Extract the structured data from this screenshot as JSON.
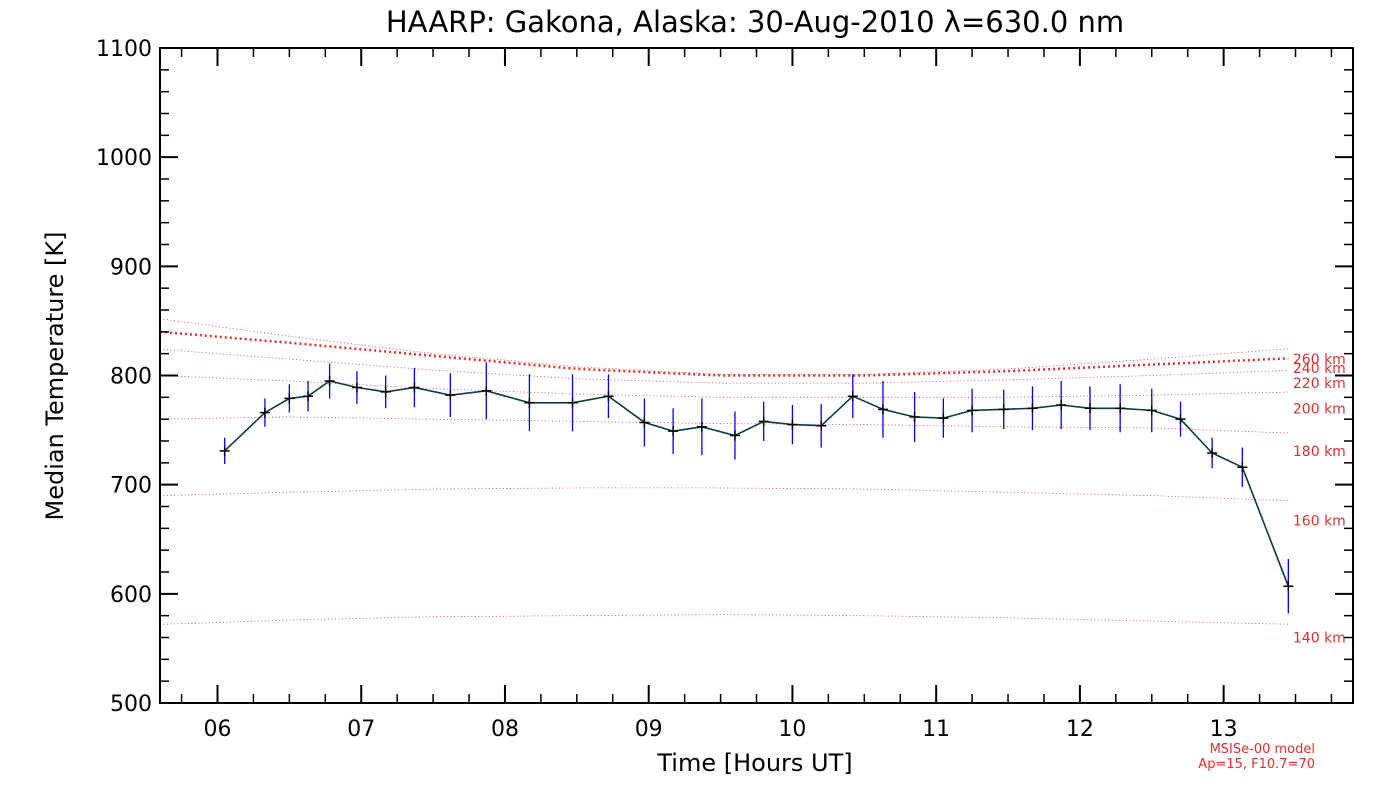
{
  "chart_data": {
    "type": "line",
    "title": "HAARP: Gakona,  Alaska: 30-Aug-2010 λ=630.0 nm",
    "xlabel": "Time [Hours UT]",
    "ylabel": "Median Temperature [K]",
    "xlim": [
      5.6,
      13.9
    ],
    "ylim": [
      500,
      1100
    ],
    "x_ticks": [
      6,
      7,
      8,
      9,
      10,
      11,
      12,
      13
    ],
    "x_tick_labels": [
      "06",
      "07",
      "08",
      "09",
      "10",
      "11",
      "12",
      "13"
    ],
    "y_ticks": [
      500,
      600,
      700,
      800,
      900,
      1000,
      1100
    ],
    "y_tick_labels": [
      "500",
      "600",
      "700",
      "800",
      "900",
      "1000",
      "1100"
    ],
    "grid": false,
    "colors": {
      "measurement_line": "#0a3a4a",
      "error_bar": "#0000ff",
      "model": "#e03030",
      "axes": "#000000"
    },
    "series": [
      {
        "x": [
          6.05,
          6.33,
          6.5,
          6.63,
          6.78,
          6.97,
          7.17,
          7.37,
          7.62,
          7.87,
          8.17,
          8.47,
          8.72,
          8.97,
          9.17,
          9.37,
          9.6,
          9.8,
          10.0,
          10.2,
          10.42,
          10.63,
          10.85,
          11.05,
          11.25,
          11.47,
          11.67,
          11.87,
          12.07,
          12.28,
          12.5,
          12.7,
          12.92,
          13.13,
          13.45
        ],
        "values": [
          731,
          766,
          779,
          781,
          795,
          789,
          785,
          789,
          782,
          786,
          775,
          775,
          781,
          757,
          749,
          753,
          745,
          758,
          755,
          754,
          781,
          769,
          762,
          761,
          768,
          769,
          770,
          773,
          770,
          770,
          768,
          760,
          729,
          716,
          607
        ],
        "errors": [
          12,
          13,
          13,
          14,
          16,
          15,
          15,
          18,
          20,
          26,
          26,
          26,
          20,
          22,
          21,
          26,
          22,
          18,
          18,
          20,
          20,
          26,
          23,
          18,
          20,
          18,
          20,
          22,
          20,
          22,
          20,
          16,
          14,
          18,
          25
        ]
      }
    ],
    "model": {
      "x": [
        5.6,
        6.5,
        7.5,
        8.5,
        9.5,
        10.5,
        11.5,
        12.5,
        13.5
      ],
      "curves": [
        {
          "label": "260 km",
          "values": [
            852,
            836,
            820,
            808,
            801,
            801,
            806,
            815,
            825
          ]
        },
        {
          "label": "240 km",
          "values": [
            840,
            830,
            818,
            806,
            800,
            800,
            804,
            810,
            816
          ]
        },
        {
          "label": "220 km",
          "values": [
            824,
            815,
            805,
            797,
            793,
            793,
            796,
            800,
            805
          ]
        },
        {
          "label": "200 km",
          "values": [
            800,
            795,
            788,
            783,
            780,
            780,
            780,
            782,
            785
          ]
        },
        {
          "label": "180 km",
          "values": [
            760,
            762,
            760,
            758,
            756,
            755,
            753,
            752,
            747
          ]
        },
        {
          "label": "160 km",
          "values": [
            690,
            693,
            696,
            697,
            697,
            696,
            693,
            690,
            685
          ]
        },
        {
          "label": "140 km",
          "values": [
            572,
            576,
            579,
            580,
            581,
            580,
            578,
            575,
            572
          ]
        }
      ],
      "label_values": [
        815,
        807,
        793,
        770,
        731,
        667,
        560
      ]
    },
    "notes": [
      "MSISe-00 model",
      "Ap=15, F10.7=70"
    ]
  }
}
